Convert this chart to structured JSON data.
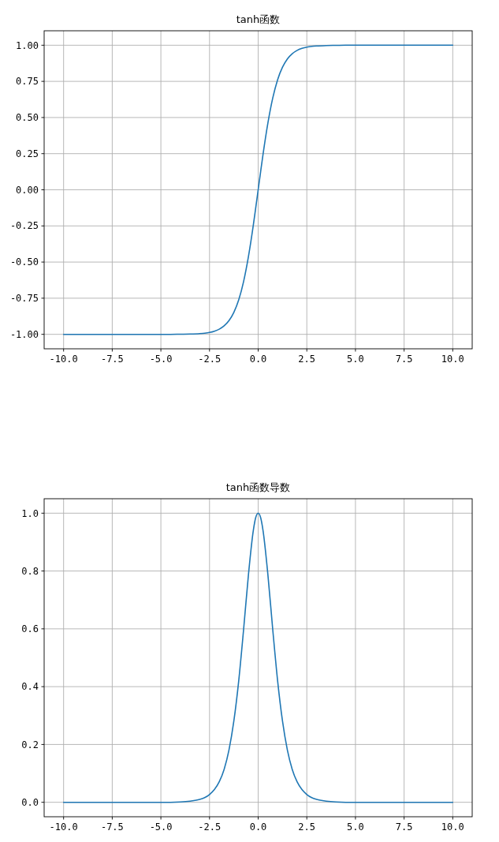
{
  "chart_data": [
    {
      "type": "line",
      "title": "tanh函数",
      "x": [
        -10,
        -9,
        -8,
        -7,
        -6,
        -5,
        -4.5,
        -4,
        -3.5,
        -3,
        -2.75,
        -2.5,
        -2.25,
        -2,
        -1.75,
        -1.5,
        -1.25,
        -1,
        -0.75,
        -0.5,
        -0.25,
        -0.125,
        0,
        0.125,
        0.25,
        0.5,
        0.75,
        1,
        1.25,
        1.5,
        1.75,
        2,
        2.25,
        2.5,
        2.75,
        3,
        3.5,
        4,
        4.5,
        5,
        6,
        7,
        8,
        9,
        10
      ],
      "series": [
        {
          "color": "#1f77b4",
          "values": [
            -1,
            -1,
            -1,
            -1,
            -1,
            -1,
            -1,
            -0.999,
            -0.998,
            -0.995,
            -0.992,
            -0.987,
            -0.978,
            -0.964,
            -0.941,
            -0.905,
            -0.848,
            -0.762,
            -0.635,
            -0.462,
            -0.245,
            -0.124,
            0,
            0.124,
            0.245,
            0.462,
            0.635,
            0.762,
            0.848,
            0.905,
            0.941,
            0.964,
            0.978,
            0.987,
            0.992,
            0.995,
            0.998,
            0.999,
            1,
            1,
            1,
            1,
            1,
            1,
            1
          ]
        }
      ],
      "xlim": [
        -11,
        11
      ],
      "ylim": [
        -1.1,
        1.1
      ],
      "xticks": [
        {
          "value": -10,
          "label": "-10.0"
        },
        {
          "value": -7.5,
          "label": "-7.5"
        },
        {
          "value": -5,
          "label": "-5.0"
        },
        {
          "value": -2.5,
          "label": "-2.5"
        },
        {
          "value": 0,
          "label": "0.0"
        },
        {
          "value": 2.5,
          "label": "2.5"
        },
        {
          "value": 5,
          "label": "5.0"
        },
        {
          "value": 7.5,
          "label": "7.5"
        },
        {
          "value": 10,
          "label": "10.0"
        }
      ],
      "yticks": [
        {
          "value": -1,
          "label": "-1.00"
        },
        {
          "value": -0.75,
          "label": "-0.75"
        },
        {
          "value": -0.5,
          "label": "-0.50"
        },
        {
          "value": -0.25,
          "label": "-0.25"
        },
        {
          "value": 0,
          "label": "0.00"
        },
        {
          "value": 0.25,
          "label": "0.25"
        },
        {
          "value": 0.5,
          "label": "0.50"
        },
        {
          "value": 0.75,
          "label": "0.75"
        },
        {
          "value": 1,
          "label": "1.00"
        }
      ],
      "grid": true
    },
    {
      "type": "line",
      "title": "tanh函数导数",
      "x": [
        -10,
        -9,
        -8,
        -7,
        -6,
        -5,
        -4.5,
        -4,
        -3.5,
        -3,
        -2.75,
        -2.5,
        -2.25,
        -2,
        -1.75,
        -1.5,
        -1.25,
        -1,
        -0.75,
        -0.5,
        -0.25,
        -0.125,
        0,
        0.125,
        0.25,
        0.5,
        0.75,
        1,
        1.25,
        1.5,
        1.75,
        2,
        2.25,
        2.5,
        2.75,
        3,
        3.5,
        4,
        4.5,
        5,
        6,
        7,
        8,
        9,
        10
      ],
      "series": [
        {
          "color": "#1f77b4",
          "values": [
            0,
            0,
            0,
            0,
            0,
            0,
            0,
            0.001,
            0.004,
            0.01,
            0.016,
            0.027,
            0.044,
            0.071,
            0.114,
            0.181,
            0.281,
            0.42,
            0.597,
            0.787,
            0.94,
            0.985,
            1,
            0.985,
            0.94,
            0.787,
            0.597,
            0.42,
            0.281,
            0.181,
            0.114,
            0.071,
            0.044,
            0.027,
            0.016,
            0.01,
            0.004,
            0.001,
            0,
            0,
            0,
            0,
            0,
            0,
            0
          ]
        }
      ],
      "xlim": [
        -11,
        11
      ],
      "ylim": [
        -0.05,
        1.05
      ],
      "xticks": [
        {
          "value": -10,
          "label": "-10.0"
        },
        {
          "value": -7.5,
          "label": "-7.5"
        },
        {
          "value": -5,
          "label": "-5.0"
        },
        {
          "value": -2.5,
          "label": "-2.5"
        },
        {
          "value": 0,
          "label": "0.0"
        },
        {
          "value": 2.5,
          "label": "2.5"
        },
        {
          "value": 5,
          "label": "5.0"
        },
        {
          "value": 7.5,
          "label": "7.5"
        },
        {
          "value": 10,
          "label": "10.0"
        }
      ],
      "yticks": [
        {
          "value": 0,
          "label": "0.0"
        },
        {
          "value": 0.2,
          "label": "0.2"
        },
        {
          "value": 0.4,
          "label": "0.4"
        },
        {
          "value": 0.6,
          "label": "0.6"
        },
        {
          "value": 0.8,
          "label": "0.8"
        },
        {
          "value": 1,
          "label": "1.0"
        }
      ],
      "grid": true
    }
  ]
}
